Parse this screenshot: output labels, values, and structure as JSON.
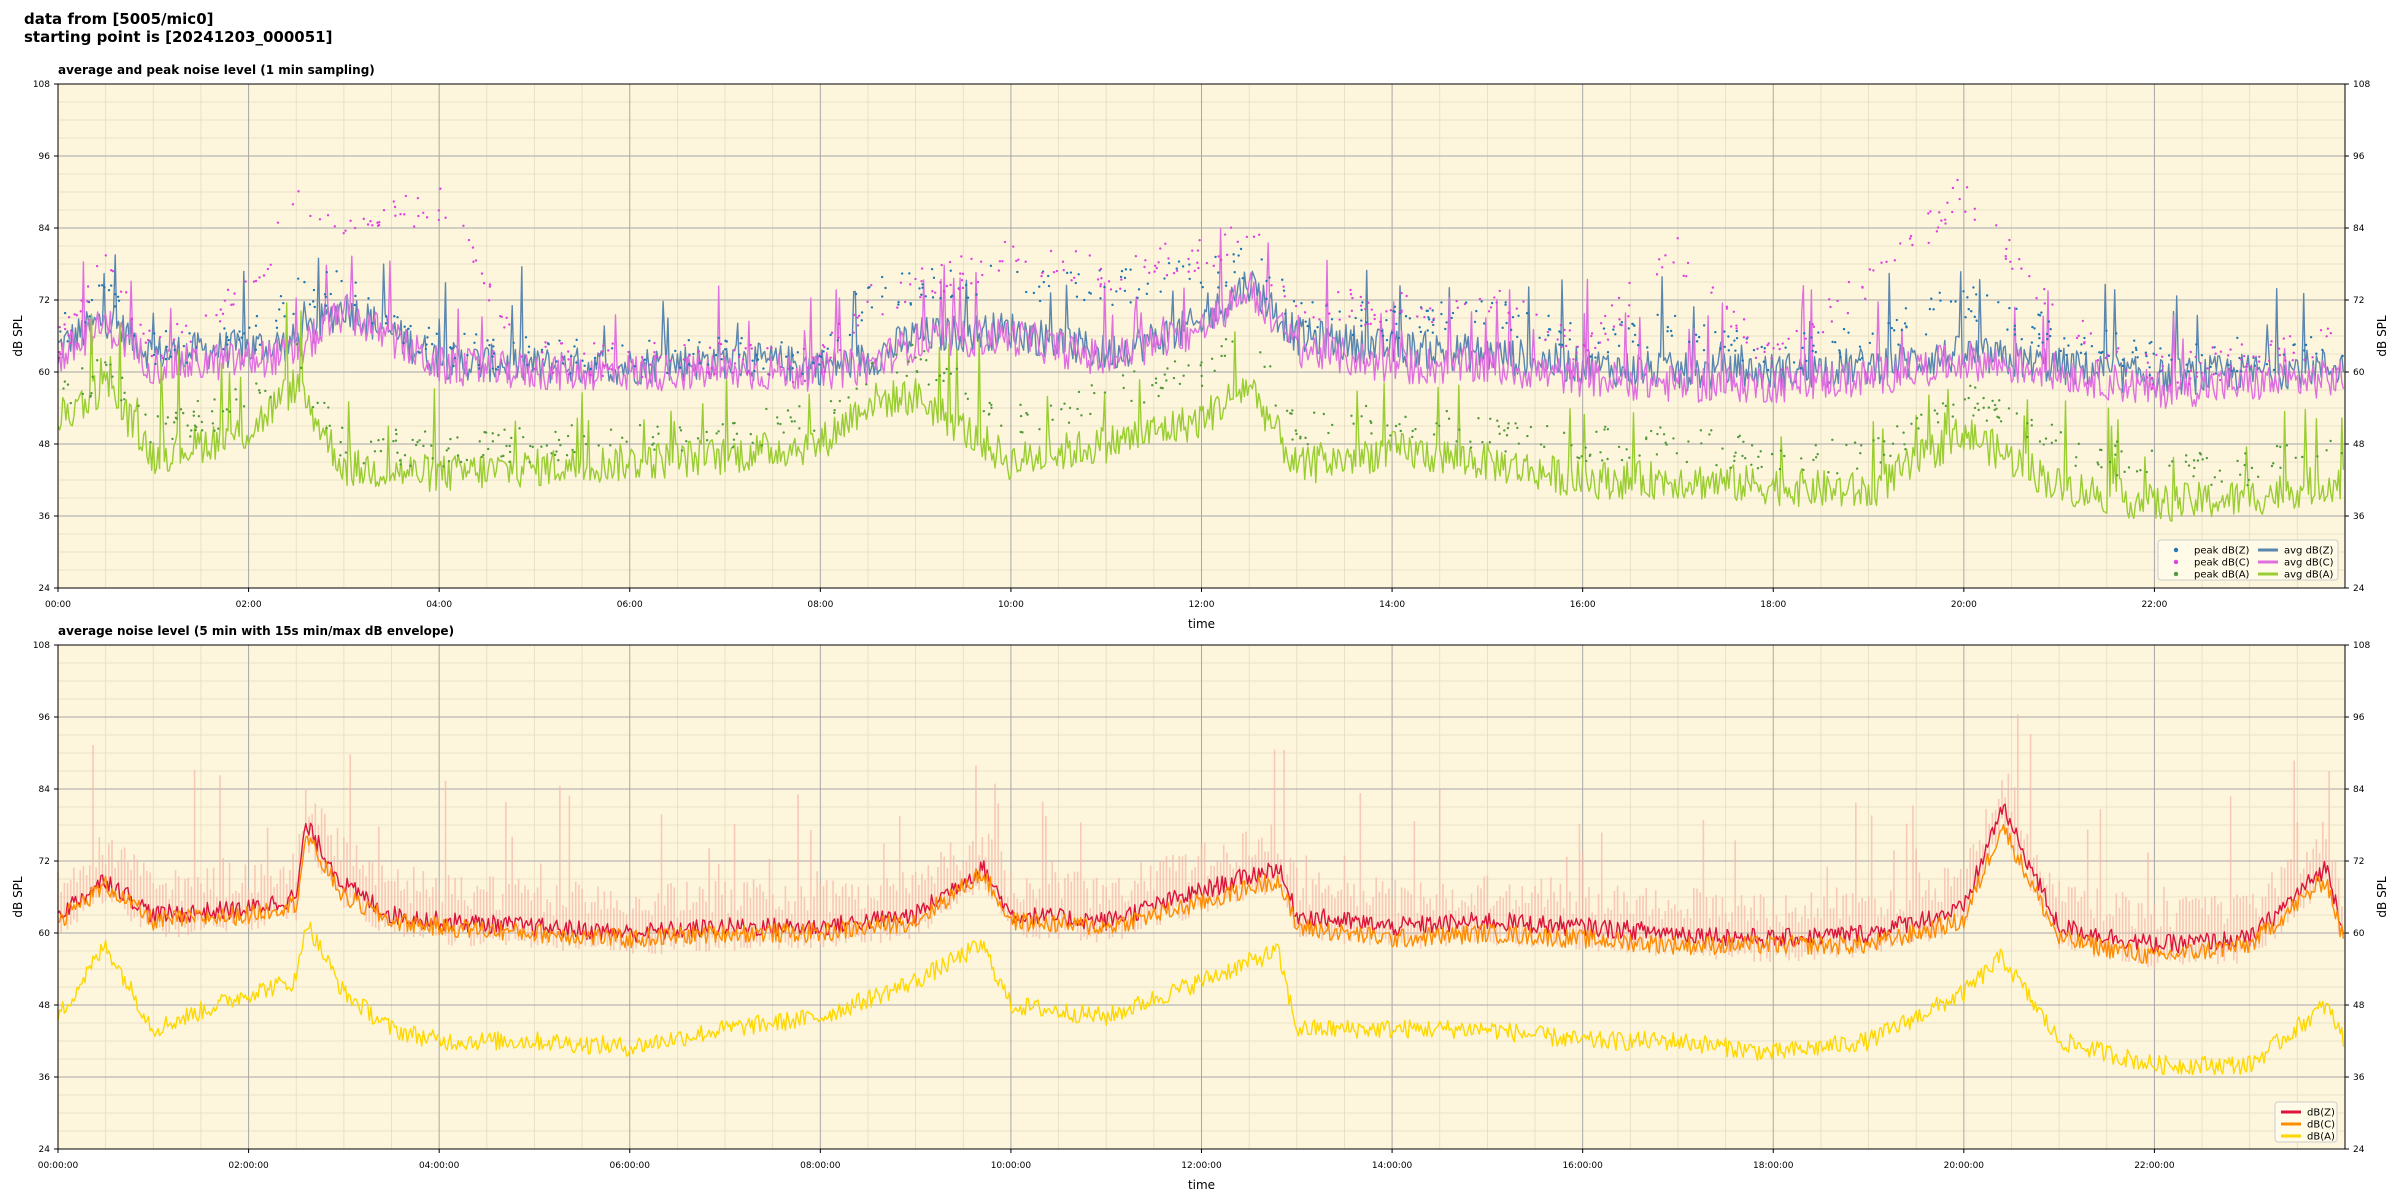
{
  "header": {
    "line1": "data from [5005/mic0]",
    "line2": "starting point is [20241203_000051]"
  },
  "colors": {
    "background": "#fdf6dc",
    "peak_z": "#1f77b4",
    "peak_c": "#e040e0",
    "peak_a": "#4f9a3a",
    "avg_z": "#5a86b0",
    "avg_c": "#e070e0",
    "avg_a": "#9acd32",
    "db_z": "#dc143c",
    "db_c": "#ff8c00",
    "db_a": "#ffd700",
    "envelope": "#f5b7a8"
  },
  "chart_data": [
    {
      "type": "line",
      "title": "average and peak noise level (1 min sampling)",
      "xlabel": "time",
      "ylabel": "dB SPL",
      "xlim_hours": [
        0,
        24
      ],
      "ylim": [
        24,
        108
      ],
      "yticks": [
        24,
        36,
        48,
        60,
        72,
        84,
        96,
        108
      ],
      "xtick_labels": [
        "00:00",
        "02:00",
        "04:00",
        "06:00",
        "08:00",
        "10:00",
        "12:00",
        "14:00",
        "16:00",
        "18:00",
        "20:00",
        "22:00"
      ],
      "grid": true,
      "legend_position": "lower-right",
      "legend": [
        "peak dB(Z)",
        "peak dB(C)",
        "peak dB(A)",
        "avg dB(Z)",
        "avg dB(C)",
        "avg dB(A)"
      ],
      "series": [
        {
          "name": "avg dB(Z)",
          "kind": "line",
          "color": "#5a86b0",
          "x": [
            0,
            0.5,
            1,
            2,
            2.5,
            3,
            4,
            5,
            6,
            7,
            8,
            8.5,
            9,
            10,
            11,
            12,
            12.5,
            13,
            14,
            15,
            16,
            17,
            18,
            19,
            20,
            21,
            22,
            23,
            24
          ],
          "y": [
            64,
            69,
            63,
            64,
            65,
            71,
            62,
            61,
            61,
            62,
            61,
            62,
            66,
            67,
            63,
            68,
            75,
            66,
            64,
            63,
            61,
            60,
            60,
            61,
            63,
            61,
            59,
            60,
            61
          ]
        },
        {
          "name": "avg dB(C)",
          "kind": "line",
          "color": "#e070e0",
          "x": [
            0,
            0.5,
            1,
            2,
            2.5,
            3,
            4,
            5,
            6,
            7,
            8,
            8.5,
            9,
            10,
            11,
            12,
            12.5,
            13,
            14,
            15,
            16,
            17,
            18,
            19,
            20,
            21,
            22,
            23,
            24
          ],
          "y": [
            62,
            68,
            61,
            62,
            63,
            70,
            61,
            60,
            60,
            60,
            60,
            61,
            65,
            66,
            62,
            67,
            74,
            64,
            61,
            61,
            59,
            58,
            58,
            59,
            62,
            60,
            57,
            58,
            59
          ]
        },
        {
          "name": "avg dB(A)",
          "kind": "line",
          "color": "#9acd32",
          "x": [
            0,
            0.5,
            1,
            2,
            2.5,
            3,
            4,
            5,
            6,
            7,
            8,
            8.5,
            9,
            10,
            11,
            12,
            12.5,
            13,
            14,
            15,
            16,
            17,
            18,
            19,
            20,
            21,
            22,
            23,
            24
          ],
          "y": [
            52,
            58,
            46,
            50,
            58,
            44,
            43,
            44,
            45,
            46,
            48,
            55,
            56,
            45,
            48,
            52,
            58,
            44,
            47,
            45,
            42,
            42,
            41,
            40,
            50,
            41,
            38,
            39,
            42
          ]
        },
        {
          "name": "peak dB(Z)",
          "kind": "scatter",
          "color": "#1f77b4",
          "x": [
            0,
            0.5,
            1,
            2,
            2.5,
            3,
            4,
            5,
            6,
            7,
            8,
            8.5,
            9,
            10,
            11,
            12,
            12.5,
            13,
            14,
            15,
            16,
            17,
            18,
            19,
            20,
            21,
            22,
            23,
            24
          ],
          "y": [
            66,
            73,
            64,
            65,
            73,
            74,
            64,
            63,
            62,
            63,
            62,
            73,
            74,
            75,
            74,
            76,
            78,
            70,
            68,
            70,
            65,
            67,
            63,
            65,
            72,
            66,
            62,
            63,
            64
          ]
        },
        {
          "name": "peak dB(C)",
          "kind": "scatter",
          "color": "#e040e0",
          "x": [
            0,
            0.5,
            1,
            2,
            2.5,
            3,
            4,
            5,
            6,
            7,
            8,
            8.5,
            9,
            10,
            11,
            12,
            12.5,
            13,
            14,
            15,
            16,
            17,
            18,
            19,
            20,
            21,
            22,
            23,
            24
          ],
          "y": [
            64,
            78,
            63,
            73,
            88,
            85,
            88,
            62,
            62,
            62,
            61,
            72,
            74,
            80,
            76,
            80,
            82,
            72,
            70,
            72,
            64,
            80,
            62,
            75,
            90,
            68,
            60,
            62,
            66
          ]
        },
        {
          "name": "peak dB(A)",
          "kind": "scatter",
          "color": "#4f9a3a",
          "x": [
            0,
            0.5,
            1,
            2,
            2.5,
            3,
            4,
            5,
            6,
            7,
            8,
            8.5,
            9,
            10,
            11,
            12,
            12.5,
            13,
            14,
            15,
            16,
            17,
            18,
            19,
            20,
            21,
            22,
            23,
            24
          ],
          "y": [
            56,
            60,
            50,
            55,
            62,
            48,
            47,
            48,
            49,
            50,
            52,
            60,
            62,
            52,
            56,
            60,
            66,
            50,
            52,
            50,
            48,
            48,
            46,
            46,
            56,
            48,
            44,
            44,
            48
          ]
        }
      ]
    },
    {
      "type": "line",
      "title": "average noise level (5 min with 15s min/max dB envelope)",
      "xlabel": "time",
      "ylabel": "dB SPL",
      "xlim_hours": [
        0,
        24
      ],
      "ylim": [
        24,
        108
      ],
      "yticks": [
        24,
        36,
        48,
        60,
        72,
        84,
        96,
        108
      ],
      "xtick_labels": [
        "00:00:00",
        "02:00:00",
        "04:00:00",
        "06:00:00",
        "08:00:00",
        "10:00:00",
        "12:00:00",
        "14:00:00",
        "16:00:00",
        "18:00:00",
        "20:00:00",
        "22:00:00"
      ],
      "grid": true,
      "legend_position": "lower-right",
      "legend": [
        "dB(Z)",
        "dB(C)",
        "dB(A)"
      ],
      "series": [
        {
          "name": "dB(Z)",
          "kind": "line",
          "color": "#dc143c",
          "x": [
            0,
            0.5,
            1,
            2,
            2.5,
            2.6,
            3,
            3.5,
            4,
            5,
            6,
            7,
            8,
            9,
            9.7,
            10,
            11,
            12,
            12.8,
            13,
            14,
            15,
            16,
            17,
            18,
            19,
            20,
            20.4,
            21,
            22,
            23,
            23.8,
            24
          ],
          "y": [
            63,
            69,
            63,
            64,
            66,
            78,
            68,
            63,
            62,
            61,
            60,
            61,
            61,
            63,
            71,
            63,
            62,
            67,
            71,
            63,
            61,
            62,
            61,
            60,
            59,
            60,
            64,
            81,
            61,
            58,
            59,
            71,
            60
          ]
        },
        {
          "name": "dB(C)",
          "kind": "line",
          "color": "#ff8c00",
          "x": [
            0,
            0.5,
            1,
            2,
            2.5,
            2.6,
            3,
            3.5,
            4,
            5,
            6,
            7,
            8,
            9,
            9.7,
            10,
            11,
            12,
            12.8,
            13,
            14,
            15,
            16,
            17,
            18,
            19,
            20,
            20.4,
            21,
            22,
            23,
            23.8,
            24
          ],
          "y": [
            62,
            68,
            62,
            63,
            65,
            76,
            66,
            62,
            61,
            60,
            59,
            60,
            60,
            62,
            70,
            62,
            61,
            65,
            69,
            61,
            59,
            60,
            59,
            58,
            58,
            58,
            62,
            78,
            59,
            56,
            58,
            69,
            58
          ]
        },
        {
          "name": "dB(A)",
          "kind": "line",
          "color": "#ffd700",
          "x": [
            0,
            0.5,
            1,
            2,
            2.5,
            2.6,
            3,
            3.5,
            4,
            5,
            6,
            7,
            8,
            9,
            9.7,
            10,
            11,
            12,
            12.8,
            13,
            14,
            15,
            16,
            17,
            18,
            19,
            20,
            20.4,
            21,
            22,
            23,
            23.8,
            24
          ],
          "y": [
            46,
            58,
            44,
            50,
            52,
            62,
            50,
            44,
            42,
            42,
            41,
            44,
            46,
            52,
            58,
            48,
            46,
            52,
            57,
            44,
            44,
            44,
            42,
            42,
            40,
            42,
            50,
            56,
            42,
            38,
            38,
            48,
            42
          ]
        }
      ]
    }
  ]
}
